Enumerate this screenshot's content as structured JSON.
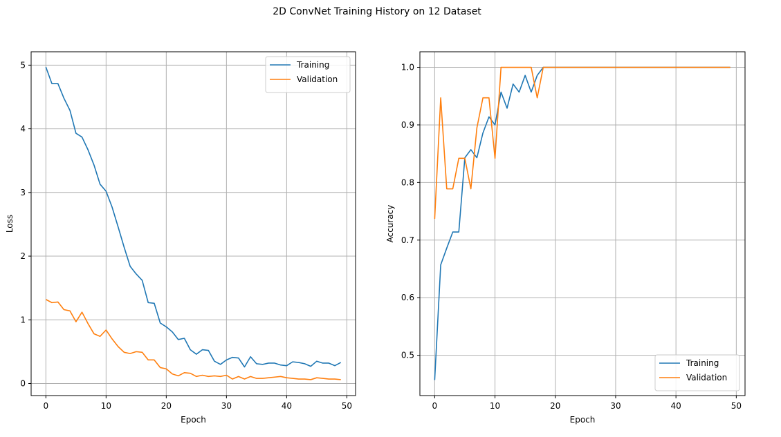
{
  "figure": {
    "title": "2D ConvNet Training History on 12 Dataset"
  },
  "colors": {
    "training": "#1f77b4",
    "validation": "#ff7f0e",
    "grid": "#b0b0b0"
  },
  "chart_data": [
    {
      "type": "line",
      "name": "loss",
      "xlabel": "Epoch",
      "ylabel": "Loss",
      "xlim": [
        -2.45,
        51.45
      ],
      "ylim": [
        -0.19,
        5.21
      ],
      "xticks": [
        0,
        10,
        20,
        30,
        40,
        50
      ],
      "yticks": [
        0,
        1,
        2,
        3,
        4,
        5
      ],
      "grid": true,
      "legend": "top-right",
      "series": [
        {
          "name": "Training",
          "x": [
            0,
            1,
            2,
            3,
            4,
            5,
            6,
            7,
            8,
            9,
            10,
            11,
            12,
            13,
            14,
            15,
            16,
            17,
            18,
            19,
            20,
            21,
            22,
            23,
            24,
            25,
            26,
            27,
            28,
            29,
            30,
            31,
            32,
            33,
            34,
            35,
            36,
            37,
            38,
            39,
            40,
            41,
            42,
            43,
            44,
            45,
            46,
            47,
            48,
            49
          ],
          "values": [
            4.97,
            4.71,
            4.71,
            4.48,
            4.29,
            3.93,
            3.87,
            3.67,
            3.43,
            3.13,
            3.02,
            2.77,
            2.46,
            2.14,
            1.84,
            1.72,
            1.62,
            1.27,
            1.26,
            0.95,
            0.89,
            0.81,
            0.69,
            0.71,
            0.53,
            0.46,
            0.53,
            0.52,
            0.35,
            0.3,
            0.37,
            0.41,
            0.4,
            0.26,
            0.42,
            0.31,
            0.3,
            0.32,
            0.32,
            0.29,
            0.28,
            0.34,
            0.33,
            0.31,
            0.27,
            0.35,
            0.32,
            0.32,
            0.28,
            0.33
          ]
        },
        {
          "name": "Validation",
          "x": [
            0,
            1,
            2,
            3,
            4,
            5,
            6,
            7,
            8,
            9,
            10,
            11,
            12,
            13,
            14,
            15,
            16,
            17,
            18,
            19,
            20,
            21,
            22,
            23,
            24,
            25,
            26,
            27,
            28,
            29,
            30,
            31,
            32,
            33,
            34,
            35,
            36,
            37,
            38,
            39,
            40,
            41,
            42,
            43,
            44,
            45,
            46,
            47,
            48,
            49
          ],
          "values": [
            1.32,
            1.27,
            1.28,
            1.16,
            1.14,
            0.97,
            1.12,
            0.94,
            0.78,
            0.74,
            0.84,
            0.7,
            0.58,
            0.49,
            0.47,
            0.5,
            0.49,
            0.37,
            0.37,
            0.25,
            0.23,
            0.15,
            0.12,
            0.17,
            0.16,
            0.11,
            0.13,
            0.11,
            0.12,
            0.11,
            0.13,
            0.07,
            0.11,
            0.07,
            0.11,
            0.08,
            0.08,
            0.09,
            0.1,
            0.11,
            0.09,
            0.08,
            0.07,
            0.07,
            0.06,
            0.09,
            0.08,
            0.07,
            0.07,
            0.06
          ]
        }
      ]
    },
    {
      "type": "line",
      "name": "accuracy",
      "xlabel": "Epoch",
      "ylabel": "Accuracy",
      "xlim": [
        -2.45,
        51.45
      ],
      "ylim": [
        0.43,
        1.027
      ],
      "xticks": [
        0,
        10,
        20,
        30,
        40,
        50
      ],
      "yticks": [
        0.5,
        0.6,
        0.7,
        0.8,
        0.9,
        1.0
      ],
      "yticklabels": [
        "0.5",
        "0.6",
        "0.7",
        "0.8",
        "0.9",
        "1.0"
      ],
      "grid": true,
      "legend": "bottom-right",
      "series": [
        {
          "name": "Training",
          "x": [
            0,
            1,
            2,
            3,
            4,
            5,
            6,
            7,
            8,
            9,
            10,
            11,
            12,
            13,
            14,
            15,
            16,
            17,
            18,
            19,
            20,
            21,
            22,
            23,
            24,
            25,
            26,
            27,
            28,
            29,
            30,
            31,
            32,
            33,
            34,
            35,
            36,
            37,
            38,
            39,
            40,
            41,
            42,
            43,
            44,
            45,
            46,
            47,
            48,
            49
          ],
          "values": [
            0.457,
            0.657,
            0.686,
            0.714,
            0.714,
            0.843,
            0.857,
            0.843,
            0.886,
            0.914,
            0.9,
            0.957,
            0.929,
            0.971,
            0.957,
            0.986,
            0.957,
            0.986,
            1.0,
            1.0,
            1.0,
            1.0,
            1.0,
            1.0,
            1.0,
            1.0,
            1.0,
            1.0,
            1.0,
            1.0,
            1.0,
            1.0,
            1.0,
            1.0,
            1.0,
            1.0,
            1.0,
            1.0,
            1.0,
            1.0,
            1.0,
            1.0,
            1.0,
            1.0,
            1.0,
            1.0,
            1.0,
            1.0,
            1.0,
            1.0
          ]
        },
        {
          "name": "Validation",
          "x": [
            0,
            1,
            2,
            3,
            4,
            5,
            6,
            7,
            8,
            9,
            10,
            11,
            12,
            13,
            14,
            15,
            16,
            17,
            18,
            19,
            20,
            21,
            22,
            23,
            24,
            25,
            26,
            27,
            28,
            29,
            30,
            31,
            32,
            33,
            34,
            35,
            36,
            37,
            38,
            39,
            40,
            41,
            42,
            43,
            44,
            45,
            46,
            47,
            48,
            49
          ],
          "values": [
            0.737,
            0.947,
            0.789,
            0.789,
            0.842,
            0.842,
            0.789,
            0.895,
            0.947,
            0.947,
            0.842,
            1.0,
            1.0,
            1.0,
            1.0,
            1.0,
            1.0,
            0.947,
            1.0,
            1.0,
            1.0,
            1.0,
            1.0,
            1.0,
            1.0,
            1.0,
            1.0,
            1.0,
            1.0,
            1.0,
            1.0,
            1.0,
            1.0,
            1.0,
            1.0,
            1.0,
            1.0,
            1.0,
            1.0,
            1.0,
            1.0,
            1.0,
            1.0,
            1.0,
            1.0,
            1.0,
            1.0,
            1.0,
            1.0,
            1.0
          ]
        }
      ]
    }
  ]
}
